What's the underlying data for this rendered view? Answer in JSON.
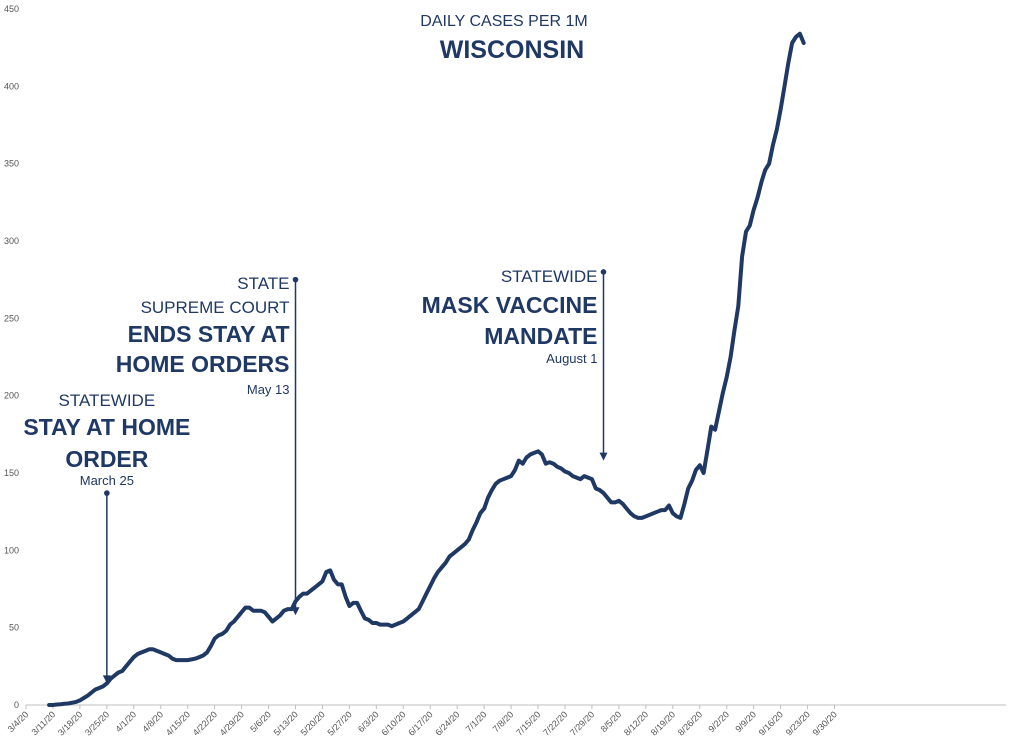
{
  "chart_data": {
    "type": "line",
    "title": "WISCONSIN",
    "subtitle": "DAILY CASES PER 1M",
    "xlabel": "",
    "ylabel": "",
    "ylim": [
      0,
      450
    ],
    "yticks": [
      0,
      50,
      100,
      150,
      200,
      250,
      300,
      350,
      400,
      450
    ],
    "grid": false,
    "x_start": "3/4/20",
    "x_tick_labels": [
      "3/4/20",
      "3/11/20",
      "3/18/20",
      "3/25/20",
      "4/1/20",
      "4/8/20",
      "4/15/20",
      "4/22/20",
      "4/29/20",
      "5/6/20",
      "5/13/20",
      "5/20/20",
      "5/27/20",
      "6/3/20",
      "6/10/20",
      "6/17/20",
      "6/24/20",
      "7/1/20",
      "7/8/20",
      "7/15/20",
      "7/22/20",
      "7/29/20",
      "8/5/20",
      "8/12/20",
      "8/19/20",
      "8/26/20",
      "9/2/20",
      "9/9/20",
      "9/16/20",
      "9/23/20",
      "9/30/20"
    ],
    "series": [
      {
        "name": "Daily cases per 1M",
        "color": "#1f3864",
        "start_day": 6,
        "values": [
          0,
          0,
          0.3,
          0.5,
          0.8,
          1,
          1.5,
          2,
          3,
          4.5,
          6,
          8,
          10,
          11,
          12,
          14,
          17,
          19,
          21,
          22,
          25,
          28,
          31,
          33,
          34,
          35,
          36,
          36,
          35,
          34,
          33,
          32,
          30,
          29,
          29,
          29,
          29,
          29.5,
          30,
          31,
          32,
          34,
          38,
          43,
          45,
          46,
          48,
          52,
          54,
          57,
          60,
          63,
          63,
          61,
          61,
          61,
          60,
          57,
          54,
          56,
          58,
          61,
          62,
          62,
          67,
          70,
          72,
          72,
          74,
          76,
          78,
          80,
          86,
          87,
          81,
          78,
          78,
          70,
          64,
          66,
          66,
          61,
          56,
          55,
          53,
          53,
          52,
          52,
          52,
          51,
          52,
          53,
          54,
          56,
          58,
          60,
          62,
          67,
          72,
          77,
          82,
          86,
          89,
          92,
          96,
          98,
          100,
          102,
          104,
          107,
          113,
          118,
          124,
          127,
          134,
          139,
          143,
          145,
          146,
          147,
          148,
          152,
          158,
          156,
          160,
          162,
          163,
          164,
          162,
          156,
          157,
          156,
          154,
          153,
          151,
          150,
          148,
          147,
          146,
          148,
          147,
          146,
          140,
          139,
          137,
          134,
          131,
          131,
          132,
          130,
          127,
          124,
          122,
          121,
          121,
          122,
          123,
          124,
          125,
          126,
          126,
          129,
          124,
          122,
          121,
          130,
          140,
          145,
          152,
          155,
          150,
          165,
          180,
          178,
          190,
          202,
          212,
          225,
          242,
          258,
          290,
          306,
          310,
          320,
          328,
          338,
          346,
          350,
          362,
          372,
          385,
          400,
          415,
          428,
          432,
          434,
          428
        ]
      }
    ],
    "annotations": [
      {
        "pre": [
          "STATEWIDE"
        ],
        "main": [
          "STAY AT HOME",
          "ORDER"
        ],
        "date": "March 25",
        "day": 21,
        "marker_value": 137,
        "arrow_to_value": 14
      },
      {
        "pre": [
          "STATE",
          "SUPREME COURT"
        ],
        "main": [
          "ENDS STAY AT",
          "HOME ORDERS"
        ],
        "date": "May 13",
        "day": 70,
        "marker_value": 275,
        "arrow_to_value": 58
      },
      {
        "pre": [
          "STATEWIDE"
        ],
        "main": [
          "MASK VACCINE",
          "MANDATE"
        ],
        "date": "August 1",
        "day": 150,
        "marker_value": 280,
        "arrow_to_value": 158
      }
    ]
  }
}
